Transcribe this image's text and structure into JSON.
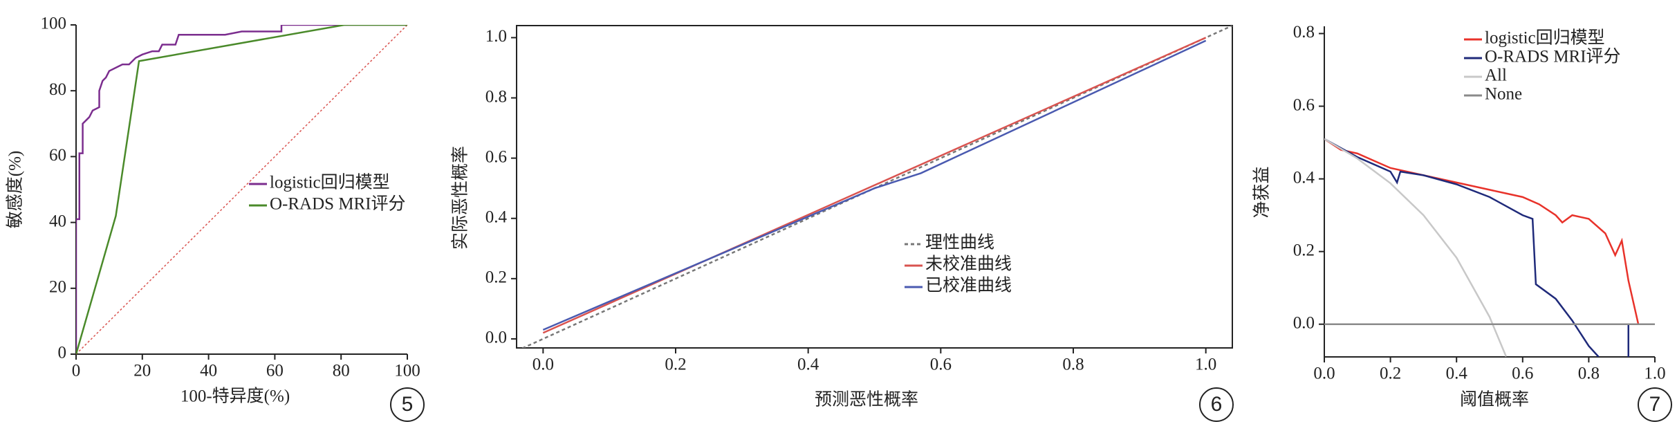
{
  "chart_data": [
    {
      "type": "line",
      "panel_label": "5",
      "x_label": "100-特异度(%)",
      "y_label": "敏感度(%)",
      "xlim": [
        0,
        100
      ],
      "ylim": [
        0,
        100
      ],
      "xticks": [
        0,
        20,
        40,
        60,
        80,
        100
      ],
      "yticks": [
        0,
        20,
        40,
        60,
        80,
        100
      ],
      "frame": false,
      "diagonal": true,
      "series": [
        {
          "name": "logistic回归模型",
          "color": "#7b2d8e",
          "x": [
            0,
            0,
            1,
            1,
            2,
            2,
            4,
            5,
            7,
            7,
            8,
            9,
            10,
            12,
            14,
            16,
            18,
            20,
            23,
            25,
            26,
            30,
            31,
            45,
            50,
            62,
            62,
            100
          ],
          "values": [
            0,
            41,
            41,
            61,
            61,
            70,
            72,
            74,
            75,
            80,
            83,
            84,
            86,
            87,
            88,
            88,
            90,
            91,
            92,
            92,
            94,
            94,
            97,
            97,
            98,
            98,
            100,
            100
          ]
        },
        {
          "name": "O-RADS MRI评分",
          "color": "#4a8a2a",
          "x": [
            0,
            12,
            19,
            81,
            100
          ],
          "values": [
            0,
            42,
            89,
            100,
            100
          ]
        }
      ]
    },
    {
      "type": "line",
      "panel_label": "6",
      "x_label": "预测恶性概率",
      "y_label": "实际恶性概率",
      "xlim": [
        -0.04,
        1.04
      ],
      "ylim": [
        -0.03,
        1.04
      ],
      "xticks": [
        {
          "value": 0,
          "label": "0.0"
        },
        0.2,
        0.4,
        0.6,
        0.8,
        {
          "value": 1,
          "label": "1.0"
        }
      ],
      "yticks": [
        {
          "value": 0,
          "label": "0.0"
        },
        0.2,
        0.4,
        0.6,
        0.8,
        {
          "value": 1,
          "label": "1.0"
        }
      ],
      "frame": true,
      "diagonal": false,
      "series": [
        {
          "name": "理性曲线",
          "color": "#777777",
          "dashed": true,
          "x": [
            -0.04,
            1.04
          ],
          "values": [
            -0.04,
            1.04
          ]
        },
        {
          "name": "未校准曲线",
          "color": "#d9534f",
          "x": [
            0,
            1
          ],
          "values": [
            0.02,
            1.0
          ]
        },
        {
          "name": "已校准曲线",
          "color": "#4a5ab0",
          "x": [
            0,
            0.5,
            0.57,
            1
          ],
          "values": [
            0.03,
            0.5,
            0.55,
            0.99
          ]
        }
      ]
    },
    {
      "type": "line",
      "panel_label": "7",
      "x_label": "阈值概率",
      "y_label": "净获益",
      "xlim": [
        0,
        1.0
      ],
      "ylim": [
        -0.09,
        0.82
      ],
      "xticks": [
        {
          "value": 0,
          "label": "0.0"
        },
        0.2,
        0.4,
        0.6,
        0.8,
        {
          "value": 1,
          "label": "1.0"
        }
      ],
      "yticks": [
        {
          "value": 0,
          "label": "0.0"
        },
        0.2,
        0.4,
        0.6,
        0.8
      ],
      "frame": false,
      "diagonal": false,
      "series": [
        {
          "name": "logistic回归模型",
          "color": "#e8322a",
          "x": [
            0,
            0.05,
            0.1,
            0.15,
            0.2,
            0.25,
            0.3,
            0.35,
            0.4,
            0.45,
            0.5,
            0.55,
            0.6,
            0.65,
            0.7,
            0.72,
            0.75,
            0.8,
            0.85,
            0.88,
            0.9,
            0.92,
            0.95,
            1.0
          ],
          "values": [
            0.51,
            0.48,
            0.47,
            0.45,
            0.43,
            0.42,
            0.41,
            0.4,
            0.39,
            0.38,
            0.37,
            0.36,
            0.35,
            0.33,
            0.3,
            0.28,
            0.3,
            0.29,
            0.25,
            0.19,
            0.23,
            0.12,
            0,
            0
          ]
        },
        {
          "name": "O-RADS MRI评分",
          "color": "#1f2a7a",
          "x": [
            0,
            0.1,
            0.2,
            0.22,
            0.23,
            0.3,
            0.4,
            0.5,
            0.6,
            0.63,
            0.64,
            0.7,
            0.75,
            0.8,
            0.83,
            0.87,
            0.92,
            0.92,
            1.0
          ],
          "values": [
            0.51,
            0.46,
            0.42,
            0.39,
            0.42,
            0.41,
            0.385,
            0.35,
            0.3,
            0.29,
            0.11,
            0.07,
            0.01,
            -0.06,
            -0.09,
            null,
            -0.09,
            0,
            0
          ]
        },
        {
          "name": "All",
          "color": "#c8c8c8",
          "x": [
            0,
            0.1,
            0.2,
            0.3,
            0.4,
            0.5,
            0.55
          ],
          "values": [
            0.51,
            0.456,
            0.388,
            0.3,
            0.183,
            0.02,
            -0.089
          ]
        },
        {
          "name": "None",
          "color": "#8a8a8a",
          "x": [
            0,
            1.0
          ],
          "values": [
            0,
            0
          ]
        }
      ]
    }
  ]
}
